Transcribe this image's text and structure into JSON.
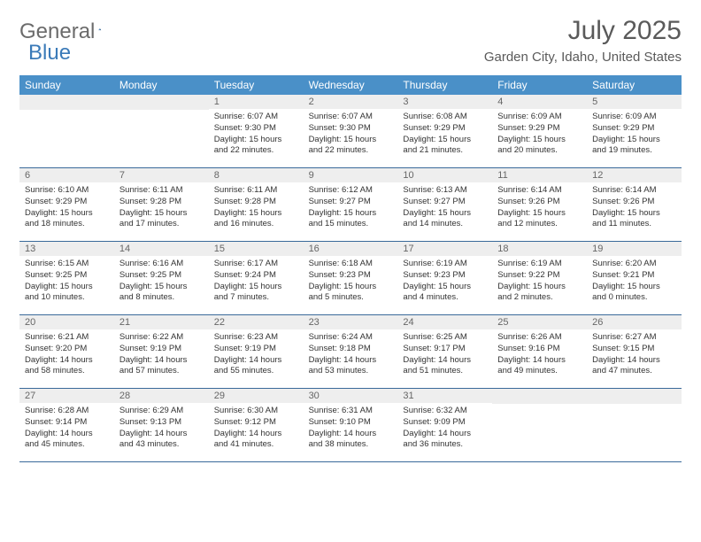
{
  "logo": {
    "text1": "General",
    "text2": "Blue"
  },
  "title": "July 2025",
  "location": "Garden City, Idaho, United States",
  "colors": {
    "header_bg": "#4a90c8",
    "header_text": "#ffffff",
    "daynum_bg": "#eeeeee",
    "daynum_text": "#666666",
    "border": "#3a6a9a",
    "logo_gray": "#6b6b6b",
    "logo_blue": "#3a7ab8"
  },
  "weekdays": [
    "Sunday",
    "Monday",
    "Tuesday",
    "Wednesday",
    "Thursday",
    "Friday",
    "Saturday"
  ],
  "weeks": [
    [
      null,
      null,
      {
        "n": "1",
        "sr": "6:07 AM",
        "ss": "9:30 PM",
        "dl": "15 hours and 22 minutes."
      },
      {
        "n": "2",
        "sr": "6:07 AM",
        "ss": "9:30 PM",
        "dl": "15 hours and 22 minutes."
      },
      {
        "n": "3",
        "sr": "6:08 AM",
        "ss": "9:29 PM",
        "dl": "15 hours and 21 minutes."
      },
      {
        "n": "4",
        "sr": "6:09 AM",
        "ss": "9:29 PM",
        "dl": "15 hours and 20 minutes."
      },
      {
        "n": "5",
        "sr": "6:09 AM",
        "ss": "9:29 PM",
        "dl": "15 hours and 19 minutes."
      }
    ],
    [
      {
        "n": "6",
        "sr": "6:10 AM",
        "ss": "9:29 PM",
        "dl": "15 hours and 18 minutes."
      },
      {
        "n": "7",
        "sr": "6:11 AM",
        "ss": "9:28 PM",
        "dl": "15 hours and 17 minutes."
      },
      {
        "n": "8",
        "sr": "6:11 AM",
        "ss": "9:28 PM",
        "dl": "15 hours and 16 minutes."
      },
      {
        "n": "9",
        "sr": "6:12 AM",
        "ss": "9:27 PM",
        "dl": "15 hours and 15 minutes."
      },
      {
        "n": "10",
        "sr": "6:13 AM",
        "ss": "9:27 PM",
        "dl": "15 hours and 14 minutes."
      },
      {
        "n": "11",
        "sr": "6:14 AM",
        "ss": "9:26 PM",
        "dl": "15 hours and 12 minutes."
      },
      {
        "n": "12",
        "sr": "6:14 AM",
        "ss": "9:26 PM",
        "dl": "15 hours and 11 minutes."
      }
    ],
    [
      {
        "n": "13",
        "sr": "6:15 AM",
        "ss": "9:25 PM",
        "dl": "15 hours and 10 minutes."
      },
      {
        "n": "14",
        "sr": "6:16 AM",
        "ss": "9:25 PM",
        "dl": "15 hours and 8 minutes."
      },
      {
        "n": "15",
        "sr": "6:17 AM",
        "ss": "9:24 PM",
        "dl": "15 hours and 7 minutes."
      },
      {
        "n": "16",
        "sr": "6:18 AM",
        "ss": "9:23 PM",
        "dl": "15 hours and 5 minutes."
      },
      {
        "n": "17",
        "sr": "6:19 AM",
        "ss": "9:23 PM",
        "dl": "15 hours and 4 minutes."
      },
      {
        "n": "18",
        "sr": "6:19 AM",
        "ss": "9:22 PM",
        "dl": "15 hours and 2 minutes."
      },
      {
        "n": "19",
        "sr": "6:20 AM",
        "ss": "9:21 PM",
        "dl": "15 hours and 0 minutes."
      }
    ],
    [
      {
        "n": "20",
        "sr": "6:21 AM",
        "ss": "9:20 PM",
        "dl": "14 hours and 58 minutes."
      },
      {
        "n": "21",
        "sr": "6:22 AM",
        "ss": "9:19 PM",
        "dl": "14 hours and 57 minutes."
      },
      {
        "n": "22",
        "sr": "6:23 AM",
        "ss": "9:19 PM",
        "dl": "14 hours and 55 minutes."
      },
      {
        "n": "23",
        "sr": "6:24 AM",
        "ss": "9:18 PM",
        "dl": "14 hours and 53 minutes."
      },
      {
        "n": "24",
        "sr": "6:25 AM",
        "ss": "9:17 PM",
        "dl": "14 hours and 51 minutes."
      },
      {
        "n": "25",
        "sr": "6:26 AM",
        "ss": "9:16 PM",
        "dl": "14 hours and 49 minutes."
      },
      {
        "n": "26",
        "sr": "6:27 AM",
        "ss": "9:15 PM",
        "dl": "14 hours and 47 minutes."
      }
    ],
    [
      {
        "n": "27",
        "sr": "6:28 AM",
        "ss": "9:14 PM",
        "dl": "14 hours and 45 minutes."
      },
      {
        "n": "28",
        "sr": "6:29 AM",
        "ss": "9:13 PM",
        "dl": "14 hours and 43 minutes."
      },
      {
        "n": "29",
        "sr": "6:30 AM",
        "ss": "9:12 PM",
        "dl": "14 hours and 41 minutes."
      },
      {
        "n": "30",
        "sr": "6:31 AM",
        "ss": "9:10 PM",
        "dl": "14 hours and 38 minutes."
      },
      {
        "n": "31",
        "sr": "6:32 AM",
        "ss": "9:09 PM",
        "dl": "14 hours and 36 minutes."
      },
      null,
      null
    ]
  ],
  "labels": {
    "sunrise": "Sunrise: ",
    "sunset": "Sunset: ",
    "daylight": "Daylight: "
  }
}
